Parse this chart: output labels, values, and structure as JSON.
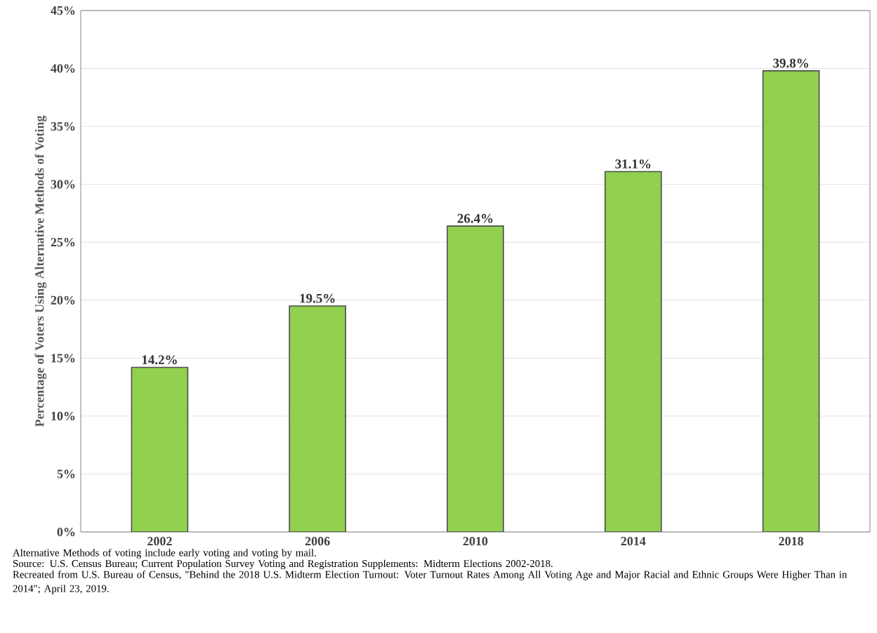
{
  "chart_data": {
    "type": "bar",
    "ylabel": "Percentage of Voters Using Alternative  Methods of Voting",
    "categories": [
      "2002",
      "2006",
      "2010",
      "2014",
      "2018"
    ],
    "values": [
      14.2,
      19.5,
      26.4,
      31.1,
      39.8
    ],
    "value_labels": [
      "14.2%",
      "19.5%",
      "26.4%",
      "31.1%",
      "39.8%"
    ],
    "color": "#92d050",
    "ylim": [
      0,
      45
    ],
    "yticks": [
      {
        "value": 0,
        "label": "0%"
      },
      {
        "value": 5,
        "label": "5%"
      },
      {
        "value": 10,
        "label": "10%"
      },
      {
        "value": 15,
        "label": "15%"
      },
      {
        "value": 20,
        "label": "20%"
      },
      {
        "value": 25,
        "label": "25%"
      },
      {
        "value": 30,
        "label": "30%"
      },
      {
        "value": 35,
        "label": "35%"
      },
      {
        "value": 40,
        "label": "40%"
      },
      {
        "value": 45,
        "label": "45%"
      }
    ],
    "grid": "y",
    "annotations": [
      "Alternative Methods of voting include early voting and voting by mail.",
      "Source:  U.S. Census Bureau; Current Population Survey Voting and Registration Supplements: Midterm Elections 2002-2018.",
      "Recreated from U.S. Bureau of Census, \"Behind the 2018 U.S. Midterm Election Turnout: Voter Turnout Rates Among All Voting Age and Major Racial and Ethnic Groups Were Higher Than in 2014\"; April 23, 2019."
    ]
  }
}
